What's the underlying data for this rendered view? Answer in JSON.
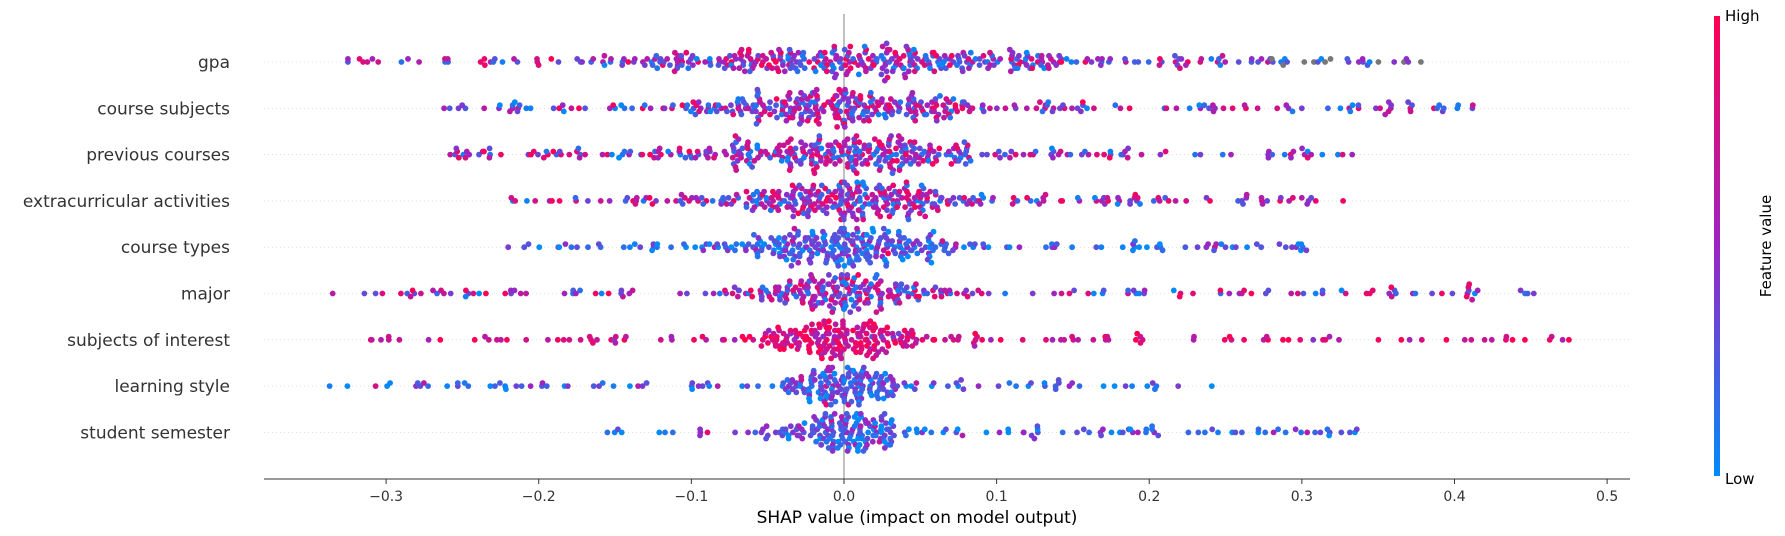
{
  "chart_data": {
    "type": "scatter",
    "subtype": "shap-beeswarm",
    "xlabel": "SHAP value (impact on model output)",
    "xlim": [
      -0.38,
      0.515
    ],
    "xticks": [
      -0.3,
      -0.2,
      -0.1,
      0.0,
      0.1,
      0.2,
      0.3,
      0.4,
      0.5
    ],
    "xtick_labels": [
      "−0.3",
      "−0.2",
      "−0.1",
      "0.0",
      "0.1",
      "0.2",
      "0.3",
      "0.4",
      "0.5"
    ],
    "colorbar": {
      "title": "Feature value",
      "high_label": "High",
      "low_label": "Low",
      "high_color": "#ff0052",
      "low_color": "#008bfb",
      "mid_color": "#9b25c3"
    },
    "missing_color": "#777777",
    "features": [
      {
        "name": "gpa",
        "min": -0.325,
        "max": 0.378,
        "spread": 0.09,
        "density": 1.0,
        "n": 420,
        "high_side": "mixed",
        "missing": 0.06
      },
      {
        "name": "course subjects",
        "min": -0.262,
        "max": 0.412,
        "spread": 0.06,
        "density": 1.1,
        "n": 380,
        "high_side": "mixed",
        "missing": 0
      },
      {
        "name": "previous courses",
        "min": -0.258,
        "max": 0.333,
        "spread": 0.055,
        "density": 1.1,
        "n": 370,
        "high_side": "mixed",
        "missing": 0
      },
      {
        "name": "extracurricular activities",
        "min": -0.218,
        "max": 0.327,
        "spread": 0.05,
        "density": 1.1,
        "n": 360,
        "high_side": "mixed",
        "missing": 0
      },
      {
        "name": "course types",
        "min": -0.22,
        "max": 0.303,
        "spread": 0.035,
        "density": 1.0,
        "n": 330,
        "high_side": "low",
        "missing": 0
      },
      {
        "name": "major",
        "min": -0.335,
        "max": 0.452,
        "spread": 0.035,
        "density": 1.0,
        "n": 320,
        "high_side": "mixed",
        "missing": 0
      },
      {
        "name": "subjects of interest",
        "min": -0.31,
        "max": 0.475,
        "spread": 0.03,
        "density": 1.0,
        "n": 300,
        "high_side": "high",
        "missing": 0
      },
      {
        "name": "learning style",
        "min": -0.337,
        "max": 0.241,
        "spread": 0.02,
        "density": 0.9,
        "n": 240,
        "high_side": "low",
        "missing": 0
      },
      {
        "name": "student semester",
        "min": -0.155,
        "max": 0.336,
        "spread": 0.02,
        "density": 0.9,
        "n": 240,
        "high_side": "low",
        "missing": 0
      }
    ]
  }
}
